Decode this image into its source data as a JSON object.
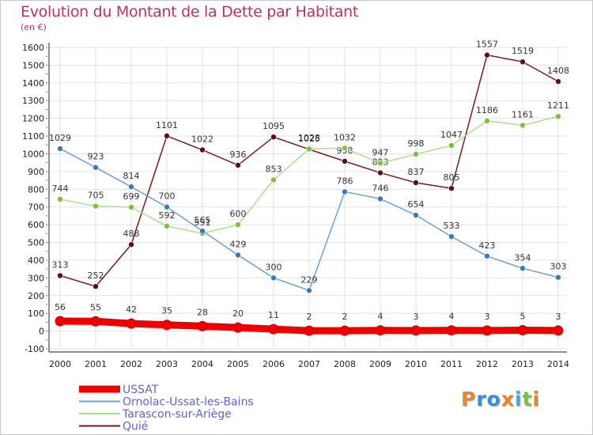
{
  "page": {
    "title": "Evolution du Montant de la Dette par Habitant",
    "unit": "(en €)"
  },
  "logo": {
    "text": "Proxiti",
    "letter_colors": [
      "#e8862a",
      "#3a8fd8",
      "#3a8fd8",
      "#e8862a",
      "#4aa8e0",
      "#7cc040",
      "#e8862a"
    ]
  },
  "chart_data": {
    "type": "line",
    "x": [
      "2000",
      "2001",
      "2002",
      "2003",
      "2004",
      "2005",
      "2006",
      "2007",
      "2008",
      "2009",
      "2010",
      "2011",
      "2012",
      "2013",
      "2014"
    ],
    "yticks": [
      "1600",
      "1500",
      "1400",
      "1300",
      "1200",
      "1100",
      "1000",
      "900",
      "800",
      "700",
      "600",
      "500",
      "400",
      "300",
      "200",
      "100",
      "0",
      "-100"
    ],
    "ylim": [
      -100,
      1600
    ],
    "grid": true,
    "legend": "bottom-left",
    "series": [
      {
        "name": "Quié",
        "color": "#7a1a1a",
        "marker": "#5a1010",
        "values": [
          313,
          252,
          488,
          1101,
          1022,
          936,
          1095,
          1025,
          958,
          893,
          837,
          805,
          1557,
          1519,
          1408
        ],
        "labels": [
          "313",
          "252",
          "488",
          "1101",
          "1022",
          "936",
          "1095",
          "1025",
          "958",
          "893",
          "837",
          "805",
          "1557",
          "1519",
          "1408"
        ]
      },
      {
        "name": "Tarascon-sur-Ariège",
        "color": "#a8e08a",
        "marker": "#7cc040",
        "values": [
          744,
          705,
          699,
          592,
          551,
          600,
          853,
          1028,
          1032,
          947,
          998,
          1047,
          1186,
          1161,
          1211
        ],
        "labels": [
          "744",
          "705",
          "699",
          "592",
          "551",
          "600",
          "853",
          "1028",
          "1032",
          "947",
          "998",
          "1047",
          "1186",
          "1161",
          "1211"
        ]
      },
      {
        "name": "Ornolac-Ussat-les-Bains",
        "color": "#6aa0d8",
        "marker": "#3a78c0",
        "values": [
          1029,
          923,
          814,
          700,
          565,
          429,
          300,
          229,
          786,
          746,
          654,
          533,
          423,
          354,
          303
        ],
        "labels": [
          "1029",
          "923",
          "814",
          "700",
          "565",
          "429",
          "300",
          "229",
          "786",
          "746",
          "654",
          "533",
          "423",
          "354",
          "303"
        ]
      },
      {
        "name": "USSAT",
        "color": "#ee0000",
        "marker": "#ee0000",
        "values": [
          56,
          55,
          42,
          35,
          28,
          20,
          11,
          2,
          2,
          4,
          3,
          4,
          3,
          5,
          3
        ],
        "labels": [
          "56",
          "55",
          "42",
          "35",
          "28",
          "20",
          "11",
          "2",
          "2",
          "4",
          "3",
          "4",
          "3",
          "5",
          "3"
        ]
      }
    ],
    "legend_order": [
      "USSAT",
      "Ornolac-Ussat-les-Bains",
      "Tarascon-sur-Ariège",
      "Quié"
    ]
  }
}
